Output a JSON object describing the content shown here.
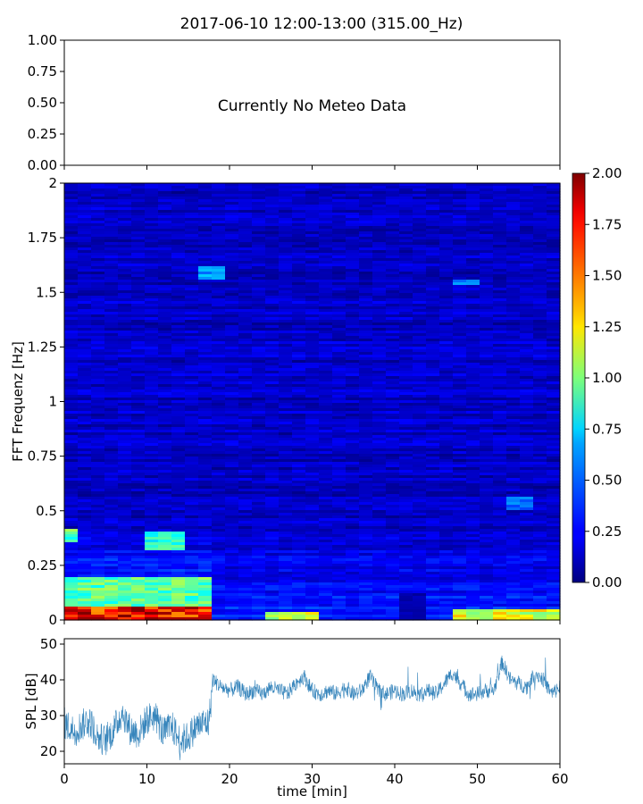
{
  "chart_data": [
    {
      "type": "line",
      "title": "2017-06-10 12:00-13:00 (315.00_Hz)",
      "message": "Currently No Meteo Data",
      "ylim": [
        0,
        1
      ],
      "yticks": [
        "1.00",
        "0.75",
        "0.50",
        "0.25",
        "0.00"
      ],
      "ytick_values": [
        1.0,
        0.75,
        0.5,
        0.25,
        0.0
      ],
      "xlim": [
        0,
        60
      ],
      "x_tick_values": [
        0,
        10,
        20,
        30,
        40,
        50,
        60
      ],
      "grid": false
    },
    {
      "type": "heatmap",
      "ylabel": "FFT Frequenz [Hz]",
      "ylim": [
        0,
        2
      ],
      "yticks": [
        "2",
        "1.75",
        "1.5",
        "1.25",
        "1",
        "0.75",
        "0.5",
        "0.25",
        "0"
      ],
      "ytick_values": [
        2,
        1.75,
        1.5,
        1.25,
        1,
        0.75,
        0.5,
        0.25,
        0
      ],
      "xlim": [
        0,
        60
      ],
      "x_tick_values": [
        0,
        10,
        20,
        30,
        40,
        50,
        60
      ],
      "colormap": "jet",
      "colorbar": {
        "range": [
          0,
          2
        ],
        "ticks": [
          "2.00",
          "1.75",
          "1.50",
          "1.25",
          "1.00",
          "0.75",
          "0.50",
          "0.25",
          "0.00"
        ],
        "tick_values": [
          2,
          1.75,
          1.5,
          1.25,
          1,
          0.75,
          0.5,
          0.25,
          0
        ]
      },
      "hot_spots": [
        {
          "t0": 0,
          "t1": 18,
          "f0": 0,
          "f1": 0.06,
          "value": 1.9
        },
        {
          "t0": 0,
          "t1": 18,
          "f0": 0.06,
          "f1": 0.2,
          "value": 1.0
        },
        {
          "t0": 0,
          "t1": 2,
          "f0": 0.35,
          "f1": 0.42,
          "value": 1.0
        },
        {
          "t0": 10.5,
          "t1": 14.5,
          "f0": 0.32,
          "f1": 0.4,
          "value": 0.9
        },
        {
          "t0": 16,
          "t1": 19,
          "f0": 1.56,
          "f1": 1.62,
          "value": 0.6
        },
        {
          "t0": 47,
          "t1": 50,
          "f0": 1.53,
          "f1": 1.56,
          "value": 0.55
        },
        {
          "t0": 54,
          "t1": 57,
          "f0": 0.5,
          "f1": 0.56,
          "value": 0.5
        },
        {
          "t0": 25,
          "t1": 30,
          "f0": 0,
          "f1": 0.04,
          "value": 1.2
        },
        {
          "t0": 47,
          "t1": 60,
          "f0": 0,
          "f1": 0.05,
          "value": 1.3
        }
      ],
      "quiet_spots": [
        {
          "t0": 40,
          "t1": 44.5,
          "f0": 0,
          "f1": 0.12,
          "value": 0.05
        }
      ]
    },
    {
      "type": "line",
      "ylabel": "SPL [dB]",
      "xlabel": "time [min]",
      "ylim": [
        16.5,
        51.5
      ],
      "yticks": [
        "50",
        "40",
        "30",
        "20"
      ],
      "ytick_values": [
        50,
        40,
        30,
        20
      ],
      "xlim": [
        0,
        60
      ],
      "xticks": [
        "0",
        "10",
        "20",
        "30",
        "40",
        "50",
        "60"
      ],
      "x_tick_values": [
        0,
        10,
        20,
        30,
        40,
        50,
        60
      ],
      "color": "#1f77b4",
      "series": [
        {
          "x": [
            0,
            1,
            2,
            3,
            4,
            5,
            6,
            7,
            8,
            9,
            10,
            11,
            12,
            13,
            14,
            15,
            16,
            17,
            17.5,
            18,
            19,
            20,
            21,
            22,
            23,
            24,
            25,
            26,
            27,
            28,
            29,
            30,
            31,
            32,
            33,
            34,
            35,
            36,
            37,
            38,
            39,
            40,
            41,
            42,
            43,
            44,
            45,
            46,
            47,
            48,
            49,
            50,
            51,
            52,
            53,
            54,
            55,
            56,
            57,
            58,
            59,
            60
          ],
          "y": [
            28,
            26,
            27,
            29,
            24,
            23,
            26,
            31,
            26,
            25,
            29,
            30,
            25,
            27,
            23,
            24,
            27,
            28,
            28,
            40,
            38,
            37,
            38,
            36,
            37,
            36,
            38,
            37,
            36,
            39,
            41,
            37,
            36,
            37,
            36,
            38,
            36,
            37,
            41,
            37,
            36,
            37,
            36,
            37,
            36,
            37,
            36,
            39,
            42,
            39,
            36,
            36,
            37,
            37,
            45,
            40,
            39,
            38,
            42,
            40,
            36,
            38
          ]
        }
      ]
    }
  ]
}
